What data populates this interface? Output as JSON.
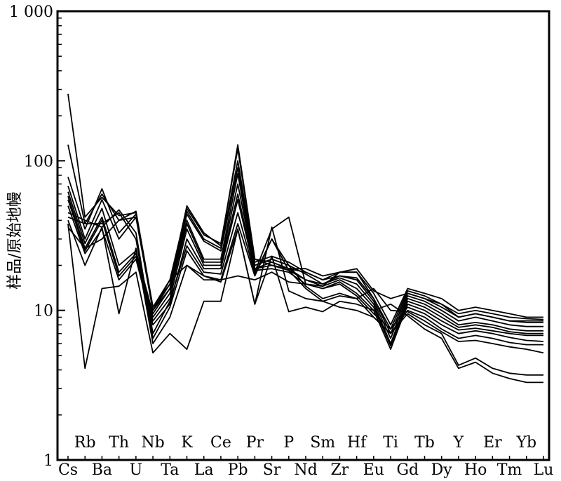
{
  "chart_data": {
    "type": "line",
    "title": "",
    "ylabel": "样品/原始地幔",
    "xlabel": "",
    "y_scale": "log",
    "ylim": [
      1,
      1000
    ],
    "y_ticks": [
      {
        "value": 1,
        "label": "1"
      },
      {
        "value": 10,
        "label": "10"
      },
      {
        "value": 100,
        "label": "100"
      },
      {
        "value": 1000,
        "label": "1 000"
      }
    ],
    "categories": [
      "Cs",
      "Rb",
      "Ba",
      "Th",
      "U",
      "Nb",
      "Ta",
      "K",
      "La",
      "Ce",
      "Pb",
      "Pr",
      "Sr",
      "P",
      "Nd",
      "Sm",
      "Zr",
      "Hf",
      "Eu",
      "Ti",
      "Gd",
      "Tb",
      "Dy",
      "Y",
      "Ho",
      "Er",
      "Tm",
      "Yb",
      "Lu"
    ],
    "grid": false,
    "legend": "none",
    "line_color": "#000000",
    "series": [
      {
        "values": [
          280,
          42,
          57,
          43,
          45,
          10.5,
          15,
          50,
          33,
          27,
          128,
          22,
          21,
          19,
          19,
          17,
          18,
          18,
          13,
          8,
          14,
          13,
          12,
          10,
          10.5,
          10,
          9.5,
          9,
          9
        ]
      },
      {
        "values": [
          128,
          38,
          60,
          40,
          46,
          10.5,
          16,
          48,
          32,
          28,
          120,
          22,
          20,
          19,
          18,
          16,
          18,
          18,
          12,
          7.5,
          13.5,
          12.5,
          11,
          9.5,
          10,
          9.5,
          9,
          8.8,
          8.7
        ]
      },
      {
        "values": [
          78,
          35,
          65,
          33,
          44,
          10,
          15,
          46,
          30,
          26,
          100,
          21,
          23,
          21,
          18,
          16,
          17,
          16.5,
          12,
          7,
          13,
          12,
          10.5,
          9,
          9.5,
          9,
          8.5,
          8.3,
          8.3
        ]
      },
      {
        "values": [
          68,
          30,
          55,
          30,
          42,
          10,
          14,
          44,
          29,
          25,
          90,
          20,
          22,
          20,
          17.5,
          15,
          17,
          16,
          11.5,
          6.5,
          12.5,
          11.5,
          10,
          8.5,
          9,
          8.5,
          8,
          7.8,
          7.8
        ]
      },
      {
        "values": [
          62,
          28,
          48,
          20,
          25,
          9.5,
          14,
          40,
          22,
          22,
          82,
          19,
          21,
          19,
          16,
          15,
          16.5,
          15,
          11,
          6,
          12,
          11,
          9.5,
          8,
          8.3,
          8,
          7.5,
          7.3,
          7.3
        ]
      },
      {
        "values": [
          58,
          26,
          42,
          18,
          24,
          9,
          13,
          38,
          21,
          21,
          70,
          19,
          20,
          18.5,
          16,
          14.5,
          16,
          14,
          10.5,
          5.8,
          11.5,
          10.5,
          9,
          7.7,
          8,
          7.7,
          7.2,
          7,
          7
        ]
      },
      {
        "values": [
          55,
          25,
          40,
          17,
          23,
          8.5,
          12,
          35,
          20,
          20,
          60,
          18.5,
          19,
          18,
          15,
          14,
          15.5,
          13,
          10,
          5.5,
          11,
          10,
          8.5,
          7.4,
          7.6,
          7.3,
          7,
          6.8,
          6.8
        ]
      },
      {
        "values": [
          50,
          24,
          35,
          16,
          22,
          8,
          11,
          30,
          19,
          19,
          55,
          18,
          35,
          42,
          15,
          14,
          15,
          12.5,
          9.5,
          7.5,
          10.5,
          9.5,
          8,
          7,
          7.3,
          7,
          6.6,
          6.3,
          6.2
        ]
      },
      {
        "values": [
          45,
          40,
          36,
          47,
          33,
          7,
          11.5,
          27,
          18,
          17.5,
          45,
          17.5,
          30,
          20,
          14.5,
          12,
          13,
          12,
          9,
          7,
          10,
          9,
          7.5,
          6.5,
          6.8,
          6.5,
          6.1,
          5.9,
          5.9
        ]
      },
      {
        "values": [
          42,
          38,
          38,
          45,
          30,
          6.5,
          10.5,
          25,
          17,
          16,
          38,
          17,
          30,
          18.5,
          14,
          11.5,
          12.5,
          12,
          14,
          10,
          9.8,
          8.5,
          7.2,
          6.2,
          6.3,
          6,
          5.7,
          5.5,
          5.2
        ]
      },
      {
        "values": [
          40,
          20,
          36,
          9.5,
          26,
          6,
          9,
          20,
          17,
          15.5,
          35,
          11,
          36,
          13.5,
          12,
          11.5,
          10.5,
          10,
          9,
          7,
          9.5,
          8,
          7,
          4.3,
          4.8,
          4.1,
          3.8,
          3.7,
          3.7
        ]
      },
      {
        "values": [
          38,
          4.1,
          14,
          14.5,
          18,
          5.2,
          7,
          5.5,
          11.5,
          11.5,
          35,
          11,
          23,
          9.8,
          10.5,
          9.8,
          11.5,
          11,
          10,
          11,
          9.2,
          7.5,
          6.5,
          4.1,
          4.5,
          3.8,
          3.5,
          3.3,
          3.3
        ]
      },
      {
        "values": [
          36,
          26,
          30,
          40,
          42,
          10,
          16,
          20,
          16,
          16,
          17,
          16,
          18,
          15.5,
          15,
          14.5,
          18,
          19,
          13.5,
          12,
          13,
          12,
          11,
          9,
          9.5,
          9,
          8.5,
          8.5,
          8.5
        ]
      }
    ],
    "x_tick_labels_upper": [
      "Rb",
      "Th",
      "Nb",
      "K",
      "Ce",
      "Pr",
      "P",
      "Sm",
      "Hf",
      "Ti",
      "Tb",
      "Y",
      "Er",
      "Yb"
    ],
    "x_tick_labels_lower": [
      "Cs",
      "Ba",
      "U",
      "Ta",
      "La",
      "Pb",
      "Sr",
      "Nd",
      "Zr",
      "Eu",
      "Gd",
      "Dy",
      "Ho",
      "Tm",
      "Lu"
    ]
  }
}
